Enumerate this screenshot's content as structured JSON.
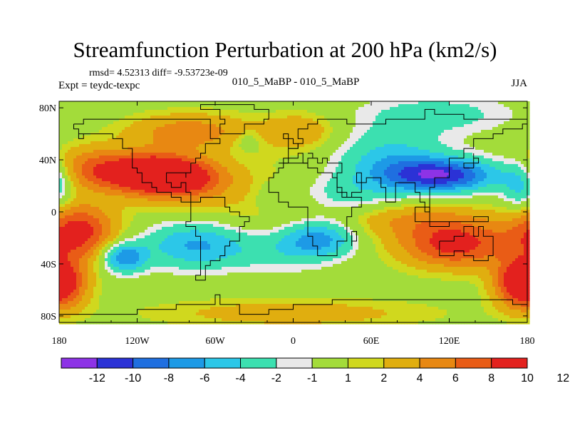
{
  "chart_data": {
    "type": "heatmap",
    "title": "Streamfunction Perturbation at 200 hPa (km2/s)",
    "stats_line": "rmsd= 4.52313 diff= -9.53723e-09",
    "experiment": "Expt = teydc-texpc",
    "period": "010_5_MaBP - 010_5_MaBP",
    "season": "JJA",
    "x_ticks": [
      {
        "value": -180,
        "label": "180"
      },
      {
        "value": -120,
        "label": "120W"
      },
      {
        "value": -60,
        "label": "60W"
      },
      {
        "value": 0,
        "label": "0"
      },
      {
        "value": 60,
        "label": "60E"
      },
      {
        "value": 120,
        "label": "120E"
      },
      {
        "value": 180,
        "label": "180"
      }
    ],
    "y_ticks": [
      {
        "value": 80,
        "label": "80N"
      },
      {
        "value": 40,
        "label": "40N"
      },
      {
        "value": 0,
        "label": "0"
      },
      {
        "value": -40,
        "label": "40S"
      },
      {
        "value": -80,
        "label": "80S"
      }
    ],
    "xlim": [
      -180,
      180
    ],
    "ylim": [
      -85,
      85
    ],
    "colorbar": {
      "colors": [
        "#8d33e6",
        "#2b32d6",
        "#1f6fe0",
        "#1d9ae6",
        "#2cc7e8",
        "#3ce0b0",
        "#e9e9e9",
        "#a3dc3a",
        "#d0d81e",
        "#e0ae0f",
        "#e88812",
        "#e95c16",
        "#e3211e"
      ],
      "labels": [
        "-12",
        "-10",
        "-8",
        "-6",
        "-4",
        "-2",
        "-1",
        "1",
        "2",
        "4",
        "6",
        "8",
        "10",
        "12"
      ],
      "levels": [
        -12,
        -10,
        -8,
        -6,
        -4,
        -2,
        -1,
        1,
        2,
        4,
        6,
        8,
        10,
        12
      ]
    },
    "features": [
      {
        "lon": -115,
        "lat": 30,
        "amp": 11,
        "slon": 28,
        "slat": 11
      },
      {
        "lon": -85,
        "lat": 25,
        "amp": 7,
        "slon": 25,
        "slat": 11
      },
      {
        "lon": -160,
        "lat": 35,
        "amp": 4,
        "slon": 20,
        "slat": 12
      },
      {
        "lon": -80,
        "lat": 62,
        "amp": 5,
        "slon": 35,
        "slat": 10
      },
      {
        "lon": 5,
        "lat": 62,
        "amp": 3.5,
        "slon": 20,
        "slat": 10
      },
      {
        "lon": -75,
        "lat": -25,
        "amp": -7,
        "slon": 28,
        "slat": 13
      },
      {
        "lon": -130,
        "lat": -35,
        "amp": -8,
        "slon": 12,
        "slat": 8
      },
      {
        "lon": -165,
        "lat": -15,
        "amp": 9,
        "slon": 20,
        "slat": 15
      },
      {
        "lon": -180,
        "lat": -55,
        "amp": 7,
        "slon": 15,
        "slat": 15
      },
      {
        "lon": 20,
        "lat": -20,
        "amp": -7,
        "slon": 20,
        "slat": 10
      },
      {
        "lon": -10,
        "lat": -30,
        "amp": -3.5,
        "slon": 30,
        "slat": 12
      },
      {
        "lon": 115,
        "lat": 28,
        "amp": -11,
        "slon": 30,
        "slat": 9
      },
      {
        "lon": 75,
        "lat": 40,
        "amp": -5,
        "slon": 30,
        "slat": 16
      },
      {
        "lon": 40,
        "lat": 12,
        "amp": -3.5,
        "slon": 30,
        "slat": 12
      },
      {
        "lon": 125,
        "lat": -25,
        "amp": 9,
        "slon": 30,
        "slat": 13
      },
      {
        "lon": 90,
        "lat": -5,
        "amp": 3.5,
        "slon": 40,
        "slat": 10
      },
      {
        "lon": 175,
        "lat": -55,
        "amp": 6,
        "slon": 15,
        "slat": 12
      },
      {
        "lon": 175,
        "lat": 20,
        "amp": -5,
        "slon": 10,
        "slat": 14
      },
      {
        "lon": -25,
        "lat": 0,
        "amp": 2,
        "slon": 60,
        "slat": 30
      },
      {
        "lon": 0,
        "lat": -78,
        "amp": 3,
        "slon": 80,
        "slat": 8
      },
      {
        "lon": 110,
        "lat": 75,
        "amp": -3,
        "slon": 40,
        "slat": 10
      },
      {
        "lon": -35,
        "lat": 55,
        "amp": -2,
        "slon": 8,
        "slat": 6
      },
      {
        "lon": -15,
        "lat": 10,
        "amp": -2,
        "slon": 10,
        "slat": 8
      }
    ]
  }
}
